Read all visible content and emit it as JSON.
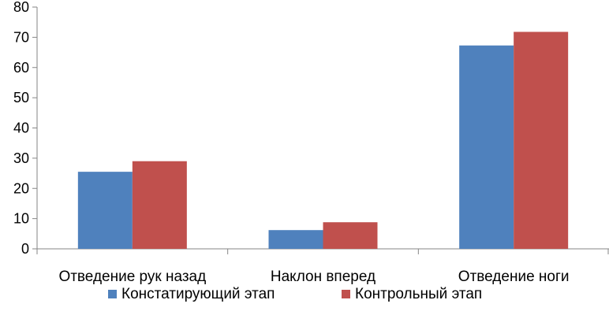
{
  "chart_data": {
    "type": "bar",
    "categories": [
      "Отведение рук назад",
      "Наклон вперед",
      "Отведение  ноги"
    ],
    "series": [
      {
        "name": "Констатирующий этап",
        "values": [
          25.5,
          6.2,
          67.3
        ],
        "color": "#4F81BD"
      },
      {
        "name": "Контрольный этап",
        "values": [
          29.0,
          8.8,
          71.8
        ],
        "color": "#C0504D"
      }
    ],
    "ylim": [
      0,
      80
    ],
    "yticks": [
      "0",
      "10",
      "20",
      "30",
      "40",
      "50",
      "60",
      "70",
      "80"
    ],
    "grid": false,
    "legend": "bottom"
  }
}
